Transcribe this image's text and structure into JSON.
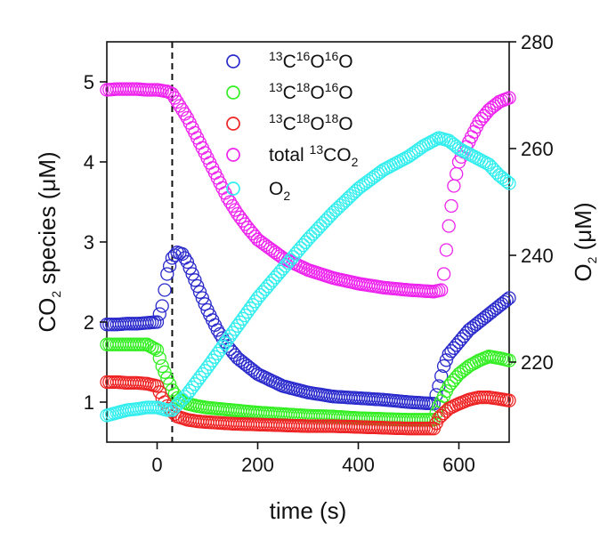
{
  "chart_data": {
    "type": "scatter",
    "title": "",
    "xlabel": "time (s)",
    "ylabel_left": {
      "parts": [
        "CO",
        "2",
        " species (μM)"
      ]
    },
    "ylabel_right": {
      "parts": [
        "O",
        "2",
        " (μM)"
      ]
    },
    "xlim": [
      -100,
      700
    ],
    "ylim_left": [
      0.5,
      5.5
    ],
    "ylim_right": [
      205,
      280
    ],
    "x_ticks": [
      0,
      200,
      400,
      600
    ],
    "y_left_ticks": [
      1,
      2,
      3,
      4,
      5
    ],
    "y_right_ticks": [
      220,
      240,
      260,
      280
    ],
    "event_line_x": 30,
    "legend_position": "top-center",
    "series": [
      {
        "key": "c16o16o",
        "label_parts": [
          "13",
          "C",
          "16",
          "O",
          "16",
          "O"
        ],
        "color": "#2a2acc",
        "axis": "left",
        "points": [
          [
            -100,
            1.97
          ],
          [
            -80,
            1.97
          ],
          [
            -60,
            1.98
          ],
          [
            -40,
            1.98
          ],
          [
            -20,
            1.99
          ],
          [
            0,
            2.0
          ],
          [
            10,
            2.2
          ],
          [
            20,
            2.6
          ],
          [
            30,
            2.8
          ],
          [
            40,
            2.87
          ],
          [
            50,
            2.85
          ],
          [
            60,
            2.75
          ],
          [
            70,
            2.6
          ],
          [
            80,
            2.45
          ],
          [
            90,
            2.3
          ],
          [
            100,
            2.15
          ],
          [
            120,
            1.9
          ],
          [
            140,
            1.7
          ],
          [
            160,
            1.55
          ],
          [
            180,
            1.45
          ],
          [
            200,
            1.35
          ],
          [
            250,
            1.2
          ],
          [
            300,
            1.12
          ],
          [
            350,
            1.07
          ],
          [
            400,
            1.05
          ],
          [
            450,
            1.03
          ],
          [
            500,
            1.0
          ],
          [
            550,
            0.98
          ],
          [
            560,
            1.2
          ],
          [
            570,
            1.45
          ],
          [
            580,
            1.6
          ],
          [
            600,
            1.75
          ],
          [
            620,
            1.9
          ],
          [
            640,
            2.0
          ],
          [
            660,
            2.1
          ],
          [
            680,
            2.2
          ],
          [
            700,
            2.3
          ]
        ]
      },
      {
        "key": "c18o16o",
        "label_parts": [
          "13",
          "C",
          "18",
          "O",
          "16",
          "O"
        ],
        "color": "#33ee22",
        "axis": "left",
        "points": [
          [
            -100,
            1.72
          ],
          [
            -80,
            1.72
          ],
          [
            -60,
            1.72
          ],
          [
            -40,
            1.72
          ],
          [
            -20,
            1.72
          ],
          [
            0,
            1.65
          ],
          [
            10,
            1.45
          ],
          [
            20,
            1.3
          ],
          [
            30,
            1.15
          ],
          [
            40,
            1.05
          ],
          [
            60,
            0.98
          ],
          [
            80,
            0.95
          ],
          [
            100,
            0.93
          ],
          [
            150,
            0.9
          ],
          [
            200,
            0.87
          ],
          [
            250,
            0.85
          ],
          [
            300,
            0.83
          ],
          [
            350,
            0.82
          ],
          [
            400,
            0.8
          ],
          [
            450,
            0.79
          ],
          [
            500,
            0.78
          ],
          [
            550,
            0.78
          ],
          [
            560,
            0.95
          ],
          [
            580,
            1.2
          ],
          [
            600,
            1.35
          ],
          [
            620,
            1.45
          ],
          [
            640,
            1.52
          ],
          [
            660,
            1.57
          ],
          [
            680,
            1.55
          ],
          [
            700,
            1.52
          ]
        ]
      },
      {
        "key": "c18o18o",
        "label_parts": [
          "13",
          "C",
          "18",
          "O",
          "18",
          "O"
        ],
        "color": "#ee2222",
        "axis": "left",
        "points": [
          [
            -100,
            1.25
          ],
          [
            -80,
            1.25
          ],
          [
            -60,
            1.24
          ],
          [
            -40,
            1.24
          ],
          [
            -20,
            1.23
          ],
          [
            0,
            1.2
          ],
          [
            10,
            1.05
          ],
          [
            20,
            0.95
          ],
          [
            30,
            0.88
          ],
          [
            40,
            0.82
          ],
          [
            60,
            0.78
          ],
          [
            80,
            0.76
          ],
          [
            100,
            0.75
          ],
          [
            150,
            0.73
          ],
          [
            200,
            0.72
          ],
          [
            250,
            0.71
          ],
          [
            300,
            0.7
          ],
          [
            350,
            0.7
          ],
          [
            400,
            0.69
          ],
          [
            450,
            0.68
          ],
          [
            500,
            0.67
          ],
          [
            550,
            0.67
          ],
          [
            560,
            0.8
          ],
          [
            580,
            0.92
          ],
          [
            600,
            0.98
          ],
          [
            620,
            1.03
          ],
          [
            640,
            1.06
          ],
          [
            660,
            1.06
          ],
          [
            680,
            1.04
          ],
          [
            700,
            1.02
          ]
        ]
      },
      {
        "key": "total13co2",
        "label_parts": [
          "total ",
          "13",
          "CO",
          "2"
        ],
        "color": "#ee22ee",
        "axis": "left",
        "points": [
          [
            -100,
            4.9
          ],
          [
            -80,
            4.91
          ],
          [
            -60,
            4.91
          ],
          [
            -40,
            4.91
          ],
          [
            -20,
            4.9
          ],
          [
            0,
            4.9
          ],
          [
            20,
            4.88
          ],
          [
            30,
            4.85
          ],
          [
            40,
            4.75
          ],
          [
            60,
            4.55
          ],
          [
            80,
            4.3
          ],
          [
            100,
            4.05
          ],
          [
            120,
            3.8
          ],
          [
            140,
            3.55
          ],
          [
            160,
            3.35
          ],
          [
            180,
            3.18
          ],
          [
            200,
            3.03
          ],
          [
            250,
            2.8
          ],
          [
            300,
            2.65
          ],
          [
            350,
            2.55
          ],
          [
            400,
            2.48
          ],
          [
            450,
            2.43
          ],
          [
            500,
            2.4
          ],
          [
            550,
            2.38
          ],
          [
            565,
            2.4
          ],
          [
            570,
            2.6
          ],
          [
            575,
            2.9
          ],
          [
            580,
            3.2
          ],
          [
            585,
            3.45
          ],
          [
            590,
            3.7
          ],
          [
            595,
            3.85
          ],
          [
            600,
            4.0
          ],
          [
            620,
            4.25
          ],
          [
            640,
            4.5
          ],
          [
            660,
            4.65
          ],
          [
            680,
            4.75
          ],
          [
            700,
            4.8
          ]
        ]
      },
      {
        "key": "o2",
        "label_parts": [
          "O",
          "2"
        ],
        "color": "#33eeee",
        "axis": "right",
        "points": [
          [
            -100,
            210
          ],
          [
            -80,
            210.5
          ],
          [
            -60,
            211
          ],
          [
            -40,
            211.2
          ],
          [
            -20,
            211.5
          ],
          [
            0,
            211.5
          ],
          [
            20,
            211
          ],
          [
            30,
            211
          ],
          [
            40,
            212
          ],
          [
            60,
            214
          ],
          [
            80,
            216.5
          ],
          [
            100,
            219
          ],
          [
            150,
            225.5
          ],
          [
            200,
            232
          ],
          [
            250,
            237.5
          ],
          [
            300,
            243
          ],
          [
            350,
            248
          ],
          [
            400,
            252.5
          ],
          [
            450,
            256
          ],
          [
            500,
            258.5
          ],
          [
            530,
            260.5
          ],
          [
            560,
            262
          ],
          [
            580,
            261.5
          ],
          [
            600,
            260
          ],
          [
            620,
            259
          ],
          [
            640,
            258
          ],
          [
            660,
            257
          ],
          [
            680,
            255
          ],
          [
            700,
            253.5
          ]
        ]
      }
    ]
  }
}
